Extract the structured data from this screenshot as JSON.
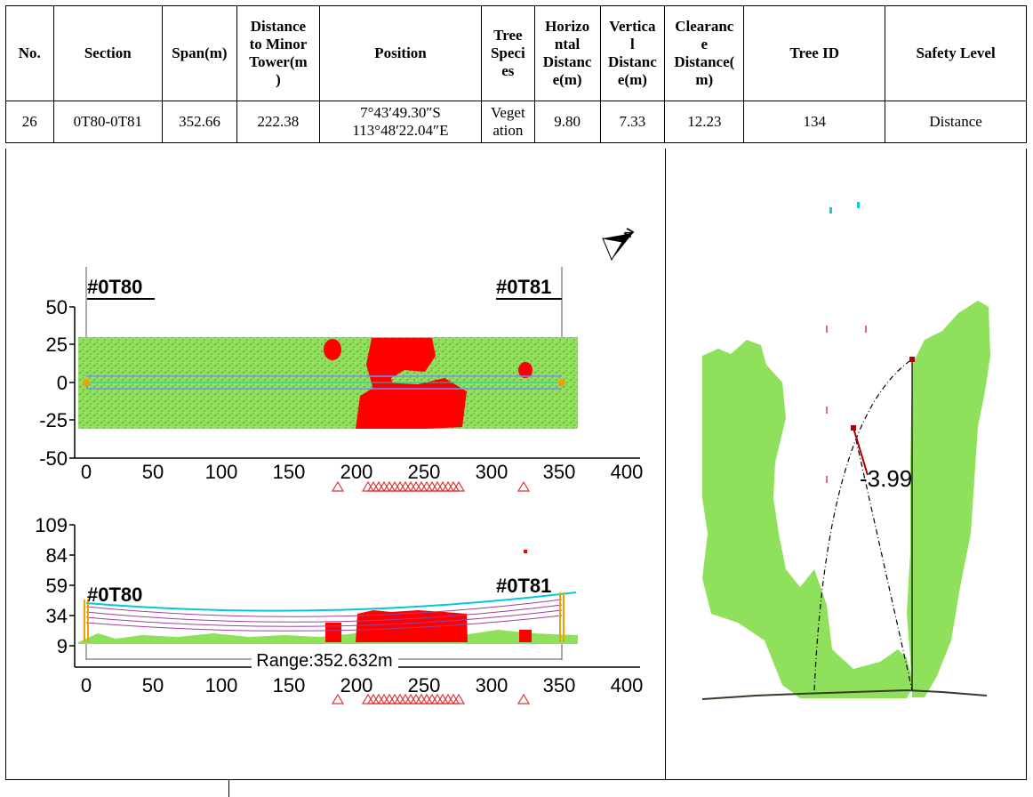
{
  "table": {
    "headers": {
      "no": "No.",
      "section": "Section",
      "span": "Span(m)",
      "distance_minor_tower": [
        "Distance",
        "to Minor",
        "Tower(m",
        ")"
      ],
      "position": "Position",
      "tree_species": [
        "Tree",
        "Speci",
        "es"
      ],
      "horizontal": [
        "Horizo",
        "ntal",
        "Distanc",
        "e(m)"
      ],
      "vertical": [
        "Vertica",
        "l",
        "Distanc",
        "e(m)"
      ],
      "clearance": [
        "Clearanc",
        "e",
        "Distance(",
        "m)"
      ],
      "tree_id": "Tree ID",
      "safety_level": "Safety Level"
    },
    "row": {
      "no": "26",
      "section": "0T80-0T81",
      "span": "352.66",
      "distance_minor_tower": "222.38",
      "position_lat": "7°43′49.30″S",
      "position_lon": "113°48′22.04″E",
      "tree_species": [
        "Veget",
        "ation"
      ],
      "horizontal": "9.80",
      "vertical": "7.33",
      "clearance": "12.23",
      "tree_id": "134",
      "safety_level": "Distance"
    }
  },
  "plan_view": {
    "tower_left": "#0T80",
    "tower_right": "#0T81",
    "y_ticks": [
      "50",
      "25",
      "0",
      "-25",
      "-50"
    ],
    "x_ticks": [
      "0",
      "50",
      "100",
      "150",
      "200",
      "250",
      "300",
      "350",
      "400"
    ],
    "north_label": "N"
  },
  "profile_view": {
    "tower_left": "#0T80",
    "tower_right": "#0T81",
    "y_ticks": [
      "109",
      "84",
      "59",
      "34",
      "9"
    ],
    "x_ticks": [
      "0",
      "50",
      "100",
      "150",
      "200",
      "250",
      "300",
      "350",
      "400"
    ],
    "range_label": "Range:352.632m"
  },
  "cross_section": {
    "measure_label": "-3.99"
  },
  "colors": {
    "vegetation": "#8fe05a",
    "danger": "#ff0000",
    "conductor_top": "#00c8d8",
    "conductor": "#a0409a",
    "tower": "#f0a000"
  }
}
